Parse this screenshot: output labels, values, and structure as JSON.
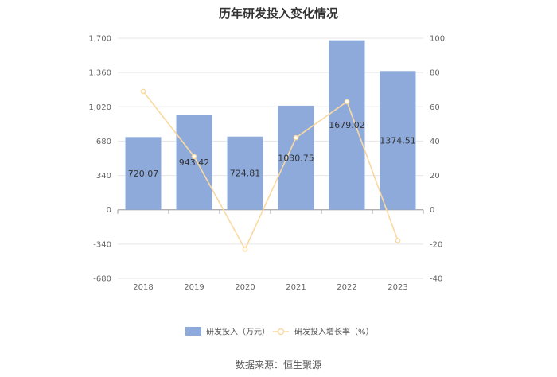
{
  "chart_data": {
    "type": "bar",
    "title": "历年研发投入变化情况",
    "source": "数据来源：恒生聚源",
    "categories": [
      "2018",
      "2019",
      "2020",
      "2021",
      "2022",
      "2023"
    ],
    "series": [
      {
        "name": "研发投入（万元）",
        "type": "bar",
        "axis": "left",
        "color": "#8eaadb",
        "values": [
          720.07,
          943.42,
          724.81,
          1030.75,
          1679.02,
          1374.51
        ],
        "labels": [
          "720.07",
          "943.42",
          "724.81",
          "1030.75",
          "1679.02",
          "1374.51"
        ]
      },
      {
        "name": "研发投入增长率（%）",
        "type": "line",
        "axis": "right",
        "color": "#fad9a1",
        "values": [
          69,
          31,
          -23,
          42,
          63,
          -18
        ]
      }
    ],
    "y_left": {
      "min": -680,
      "max": 1700,
      "ticks": [
        "-680",
        "-340",
        "0",
        "340",
        "680",
        "1,020",
        "1,360",
        "1,700"
      ],
      "tick_values": [
        -680,
        -340,
        0,
        340,
        680,
        1020,
        1360,
        1700
      ]
    },
    "y_right": {
      "min": -40,
      "max": 100,
      "ticks": [
        "-40",
        "-20",
        "0",
        "20",
        "40",
        "60",
        "80",
        "100"
      ],
      "tick_values": [
        -40,
        -20,
        0,
        20,
        40,
        60,
        80,
        100
      ]
    },
    "grid": true,
    "legend": "bottom"
  }
}
